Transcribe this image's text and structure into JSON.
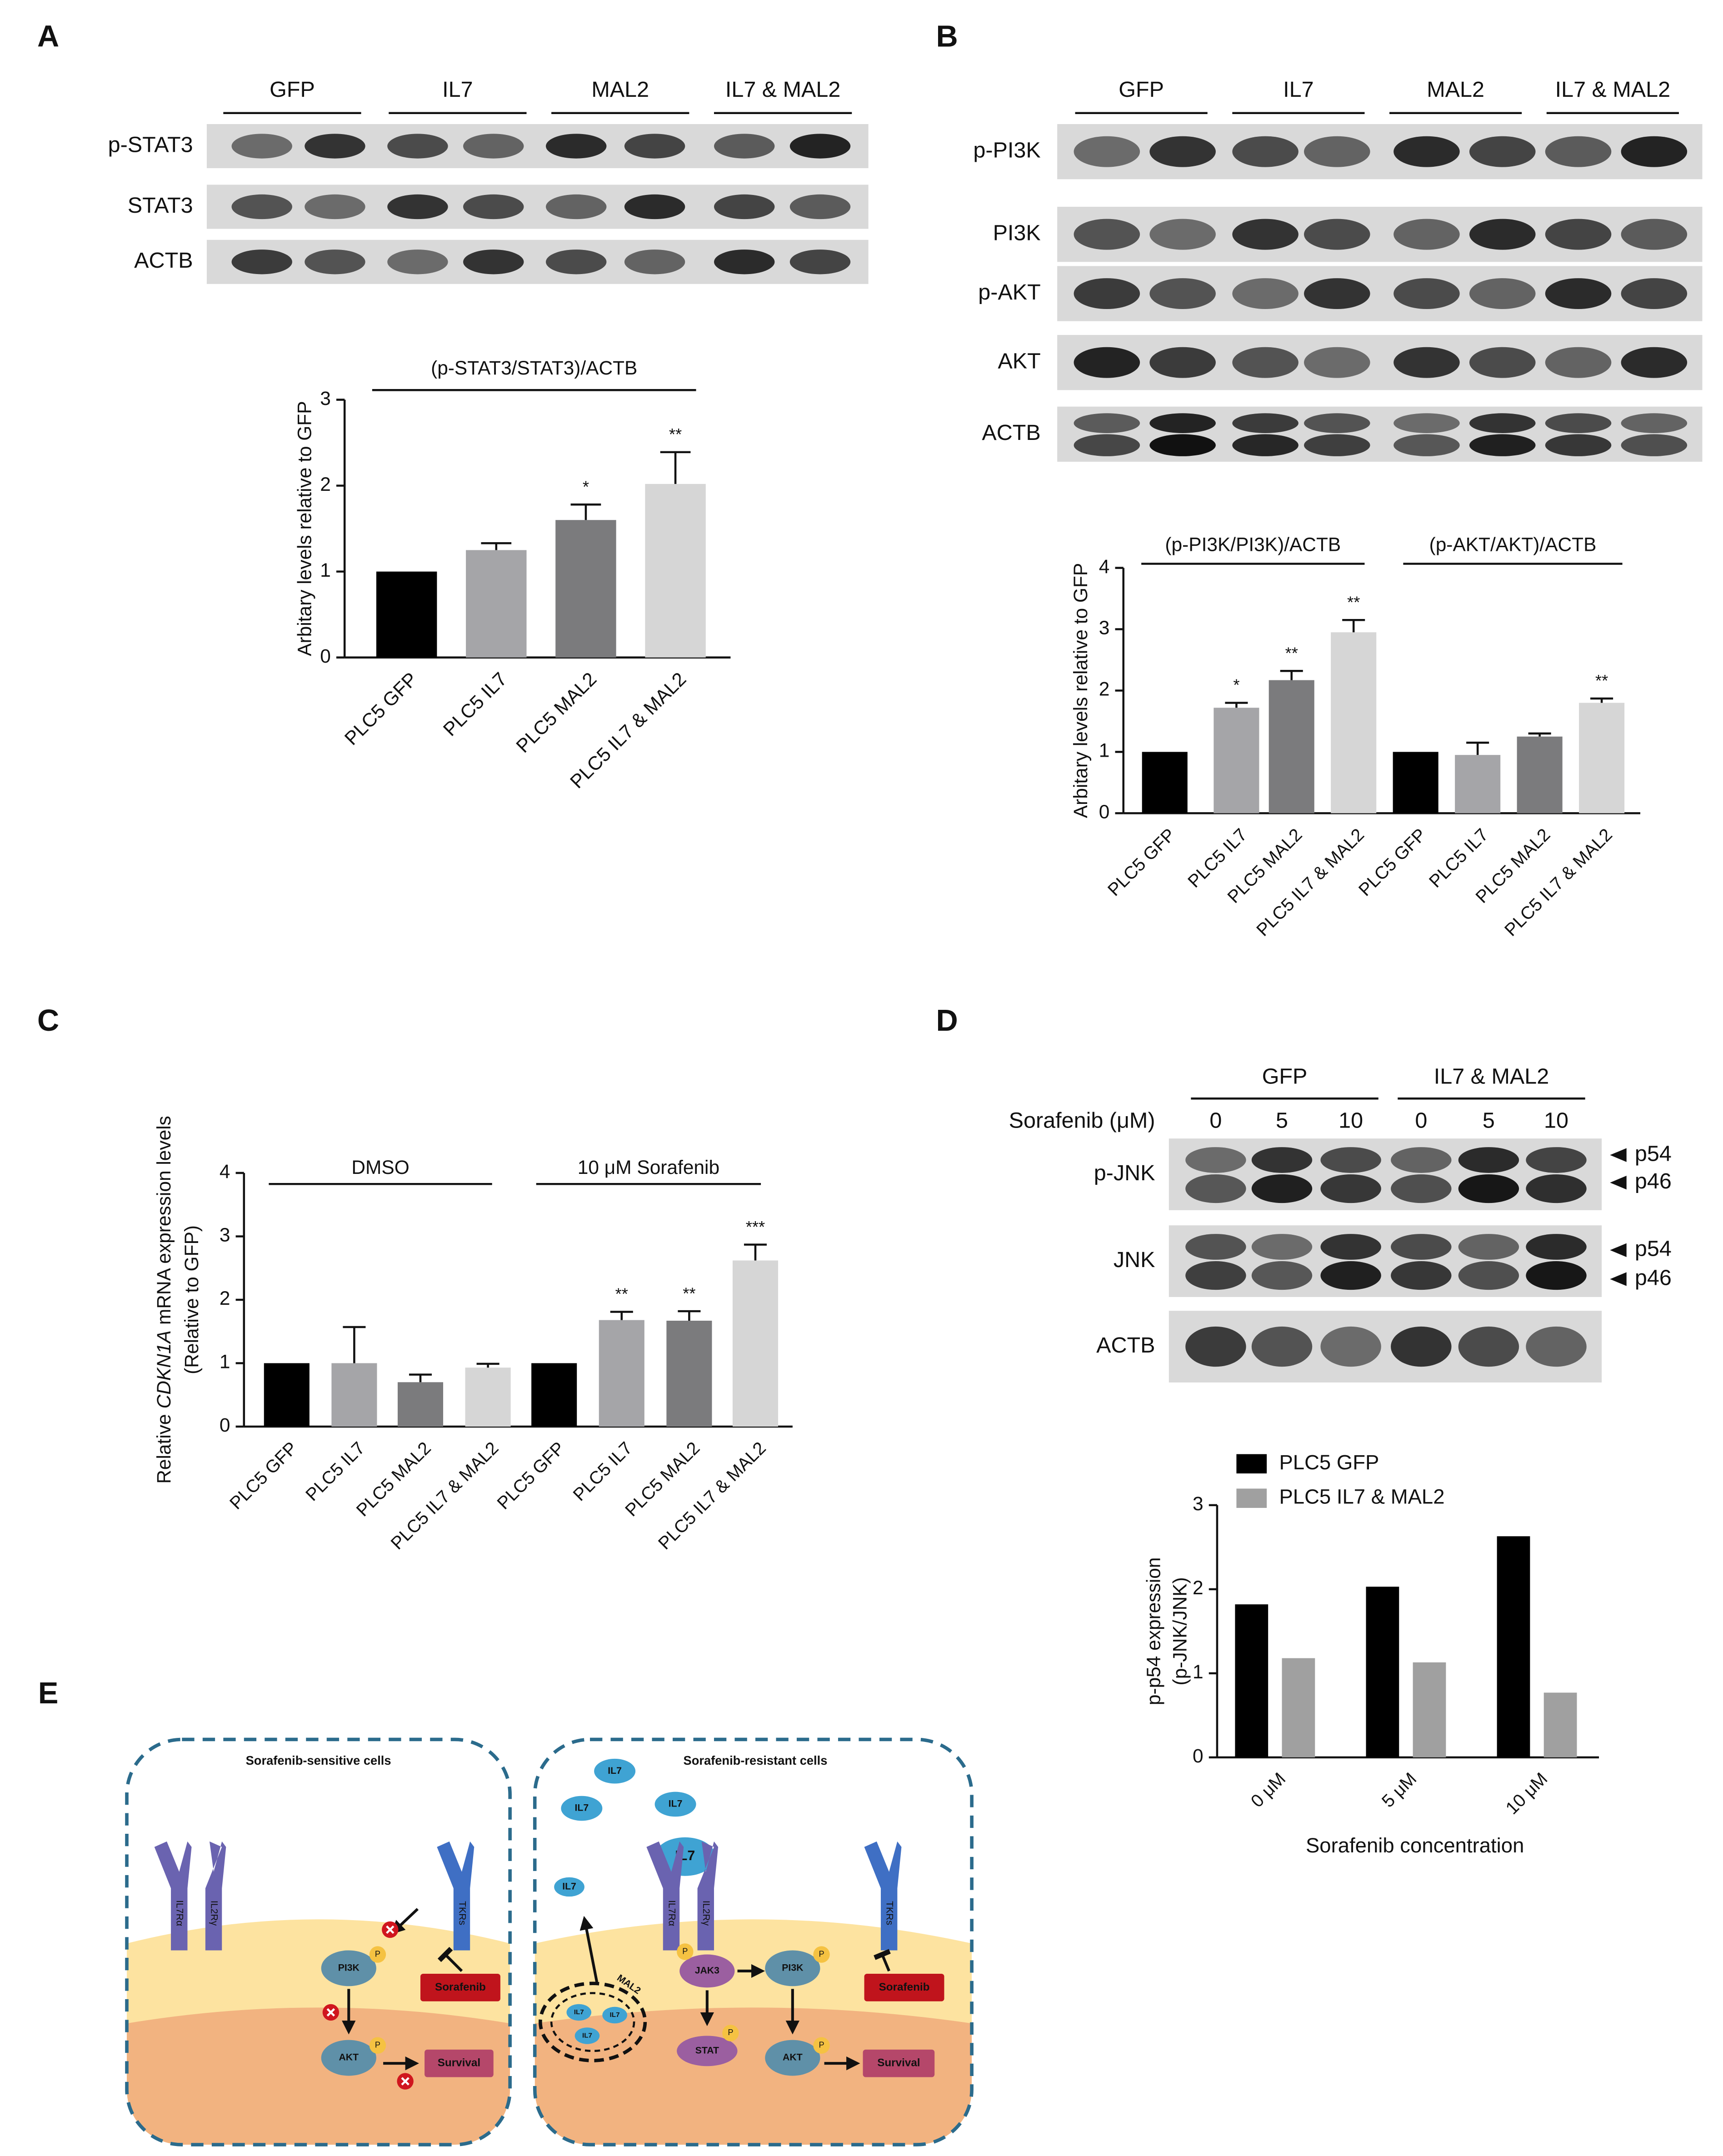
{
  "panel_labels": [
    "A",
    "B",
    "C",
    "D",
    "E"
  ],
  "blots": [
    {
      "groups": [
        "GFP",
        "IL7",
        "MAL2",
        "IL7 & MAL2"
      ],
      "rows": [
        "p-STAT3",
        "STAT3",
        "ACTB"
      ]
    },
    {
      "groups": [
        "GFP",
        "IL7",
        "MAL2",
        "IL7 & MAL2"
      ],
      "rows": [
        "p-PI3K",
        "PI3K",
        "p-AKT",
        "AKT",
        "ACTB"
      ]
    },
    {
      "groups": [
        "GFP",
        "IL7 & MAL2"
      ],
      "dose_title": "Sorafenib (μM)",
      "doses": [
        "0",
        "5",
        "10",
        "0",
        "5",
        "10"
      ],
      "rows": [
        "p-JNK",
        "JNK",
        "ACTB"
      ],
      "markers": [
        "p54",
        "p46",
        "p54",
        "p46"
      ]
    }
  ],
  "chart_data": [
    {
      "type": "bar",
      "title": "(p-STAT3/STAT3)/ACTB",
      "y_label": "Arbitary levels relative to GFP",
      "categories": [
        "PLC5 GFP",
        "PLC5 IL7",
        "PLC5 MAL2",
        "PLC5 IL7 & MAL2"
      ],
      "values": [
        1,
        1.25,
        1.6,
        2.02
      ],
      "errors": [
        0,
        0.08,
        0.18,
        0.37
      ],
      "annotations": [
        null,
        null,
        "*",
        "**"
      ],
      "colors": [
        "#000000",
        "#a5a5a8",
        "#7b7b7d",
        "#d6d6d6"
      ],
      "ylim": [
        0,
        3
      ],
      "yticks": [
        0,
        1,
        2,
        3
      ]
    },
    {
      "type": "bar",
      "group_titles": [
        "(p-PI3K/PI3K)/ACTB",
        "(p-AKT/AKT)/ACTB"
      ],
      "y_label": "Arbitary levels relative to GFP",
      "categories": [
        "PLC5 GFP",
        "PLC5 IL7",
        "PLC5 MAL2",
        "PLC5 IL7 & MAL2",
        "PLC5 GFP",
        "PLC5 IL7",
        "PLC5 MAL2",
        "PLC5 IL7 & MAL2"
      ],
      "values": [
        1,
        1.72,
        2.17,
        2.95,
        1,
        0.95,
        1.25,
        1.8
      ],
      "errors": [
        0,
        0.08,
        0.15,
        0.2,
        0,
        0.2,
        0.05,
        0.07
      ],
      "annotations": [
        null,
        "*",
        "**",
        "**",
        null,
        null,
        null,
        "**"
      ],
      "colors": [
        "#000000",
        "#a5a5a8",
        "#7b7b7d",
        "#d6d6d6",
        "#000000",
        "#a5a5a8",
        "#7b7b7d",
        "#d6d6d6"
      ],
      "ylim": [
        0,
        4
      ],
      "yticks": [
        0,
        1,
        2,
        3,
        4
      ]
    },
    {
      "type": "bar",
      "group_titles": [
        "DMSO",
        "10 μM Sorafenib"
      ],
      "y_label": {
        "lead": "Relative",
        "gene": "CDKN1A",
        "rest": "mRNA expression levels",
        "unit": "(Relative to GFP)"
      },
      "categories": [
        "PLC5 GFP",
        "PLC5 IL7",
        "PLC5 MAL2",
        "PLC5 IL7 & MAL2",
        "PLC5 GFP",
        "PLC5 IL7",
        "PLC5 MAL2",
        "PLC5 IL7 & MAL2"
      ],
      "values": [
        1,
        1,
        0.7,
        0.93,
        1,
        1.68,
        1.67,
        2.62
      ],
      "errors": [
        0,
        0.57,
        0.12,
        0.06,
        0,
        0.13,
        0.15,
        0.25
      ],
      "annotations": [
        null,
        null,
        null,
        null,
        null,
        "**",
        "**",
        "***"
      ],
      "colors": [
        "#000000",
        "#a5a5a8",
        "#7b7b7d",
        "#d6d6d6",
        "#000000",
        "#a5a5a8",
        "#7b7b7d",
        "#d6d6d6"
      ],
      "ylim": [
        0,
        4
      ],
      "yticks": [
        0,
        1,
        2,
        3,
        4
      ]
    },
    {
      "type": "grouped_bar",
      "y_label": [
        "p-p54 expression",
        "(p-JNK/JNK)"
      ],
      "x_label": "Sorafenib concentration",
      "categories": [
        "0 μM",
        "5 μM",
        "10 μM"
      ],
      "legend": "top-left",
      "series": [
        {
          "name": "PLC5 GFP",
          "color": "#000000",
          "values": [
            1.82,
            2.03,
            2.63
          ]
        },
        {
          "name": "PLC5 IL7 & MAL2",
          "color": "#a0a0a0",
          "values": [
            1.18,
            1.13,
            0.77
          ]
        }
      ],
      "ylim": [
        0,
        3
      ],
      "yticks": [
        0,
        1,
        2,
        3
      ]
    }
  ],
  "diagram": {
    "left": {
      "title": "Sorafenib-sensitive cells",
      "receptors": [
        "IL7Rα",
        "IL2Rγ",
        "TKRs"
      ],
      "nodes": [
        "PI3K",
        "AKT"
      ],
      "drug": "Sorafenib",
      "outcome": "Survival"
    },
    "right": {
      "title": "Sorafenib-resistant cells",
      "ligands": [
        "IL7",
        "IL7",
        "IL7",
        "IL7",
        "IL7"
      ],
      "receptors": [
        "IL7Rα",
        "IL2Rγ",
        "TKRs"
      ],
      "nodes": [
        "JAK3",
        "PI3K",
        "STAT",
        "AKT"
      ],
      "drug": "Sorafenib",
      "outcome": "Survival",
      "vesicle": "MAL2",
      "vesicle_cargo": [
        "IL7",
        "IL7",
        "IL7"
      ]
    },
    "phospho": "P"
  }
}
